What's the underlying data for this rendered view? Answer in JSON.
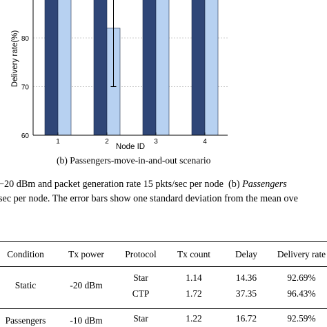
{
  "chart_data": {
    "type": "bar",
    "ylabel": "Delivery rate(%)",
    "xlabel": "Node ID",
    "categories": [
      "1",
      "2",
      "3",
      "4"
    ],
    "y_ticks": [
      "90",
      "80",
      "70",
      "60"
    ],
    "ylim": [
      60,
      100
    ],
    "grid": true,
    "colors": [
      "#2f4677",
      "#b7d1f1"
    ],
    "series": [
      {
        "values": [
          100,
          100,
          100,
          100
        ],
        "err": [
          3.5,
          3.0,
          3.0,
          3.0
        ]
      },
      {
        "values": [
          94.4,
          82.0,
          99.5,
          99.5
        ],
        "err": [
          4.0,
          12.0,
          0,
          3.0
        ]
      }
    ]
  },
  "figure": {
    "subcaption": "(b) Passengers-move-in-and-out scenario",
    "caption_line1_prefix": "−20 dBm and packet generation rate 15 pkts/sec per node",
    "caption_line1_b": "(b)",
    "caption_line1_italic": "Passengers",
    "caption_line2": "sec per node. The error bars show one standard deviation from the mean ove"
  },
  "table": {
    "headers": [
      "Condition",
      "Tx power",
      "Protocol",
      "Tx count",
      "Delay",
      "Delivery rate"
    ],
    "rows": [
      {
        "condition": "Static",
        "tx_power": "-20 dBm",
        "entries": [
          {
            "protocol": "Star",
            "tx_count": "1.14",
            "delay": "14.36",
            "delivery": "92.69%"
          },
          {
            "protocol": "CTP",
            "tx_count": "1.72",
            "delay": "37.35",
            "delivery": "96.43%"
          }
        ]
      },
      {
        "condition": "Passengers",
        "tx_power": "-10 dBm",
        "entries": [
          {
            "protocol": "Star",
            "tx_count": "1.22",
            "delay": "16.72",
            "delivery": "92.59%"
          }
        ]
      }
    ]
  }
}
